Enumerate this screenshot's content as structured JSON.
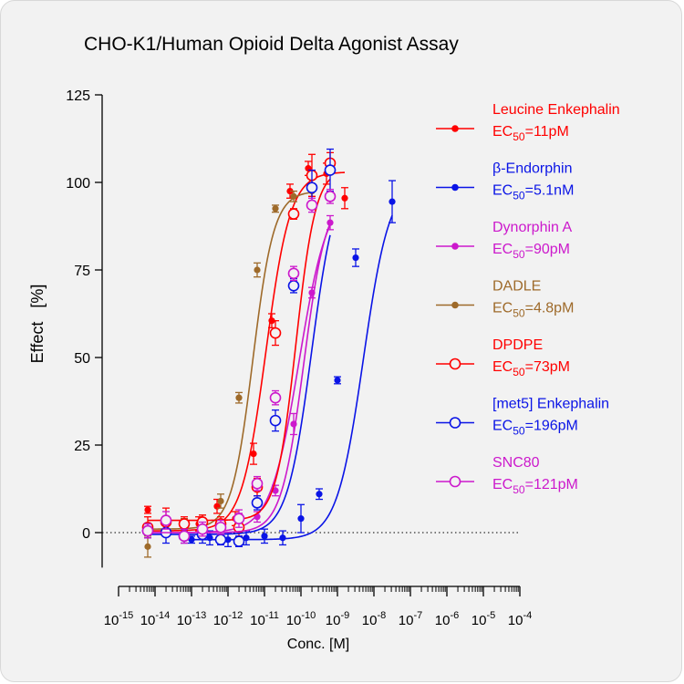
{
  "chart_data": {
    "type": "scatter",
    "title": "CHO-K1/Human Opioid Delta Agonist Assay",
    "xlabel": "Conc. [M]",
    "ylabel": "Effect   [%]",
    "x_scale": "log",
    "xlim_log10": [
      -15,
      -4
    ],
    "ylim": [
      -10,
      125
    ],
    "y_ticks": [
      "0",
      "25",
      "50",
      "75",
      "100",
      "125"
    ],
    "x_ticks": [
      {
        "base": "10",
        "exp": "-15"
      },
      {
        "base": "10",
        "exp": "-14"
      },
      {
        "base": "10",
        "exp": "-13"
      },
      {
        "base": "10",
        "exp": "-12"
      },
      {
        "base": "10",
        "exp": "-11"
      },
      {
        "base": "10",
        "exp": "-10"
      },
      {
        "base": "10",
        "exp": "-9"
      },
      {
        "base": "10",
        "exp": "-8"
      },
      {
        "base": "10",
        "exp": "-7"
      },
      {
        "base": "10",
        "exp": "-6"
      },
      {
        "base": "10",
        "exp": "-5"
      },
      {
        "base": "10",
        "exp": "-4"
      }
    ],
    "zero_line": "dotted",
    "legend_position": "right",
    "series": [
      {
        "name": "Leucine Enkephalin",
        "ec50_label": "EC",
        "ec50_sub": "50",
        "ec50_value": "=11pM",
        "color": "#ff0000",
        "marker": "filled",
        "fit": {
          "bottom": 0.5,
          "top": 103,
          "logEC50": -10.96,
          "hill": 1.3
        },
        "points": [
          {
            "x": -14.2,
            "y": 6.5,
            "err": 1.0
          },
          {
            "x": -13.7,
            "y": 1.0,
            "err": 1.0
          },
          {
            "x": -12.8,
            "y": 2.5,
            "err": 2.0
          },
          {
            "x": -12.3,
            "y": 7.5,
            "err": 2.0
          },
          {
            "x": -11.8,
            "y": 4.0,
            "err": 2.0
          },
          {
            "x": -11.3,
            "y": 22.5,
            "err": 3.0
          },
          {
            "x": -10.8,
            "y": 60.5,
            "err": 2.0
          },
          {
            "x": -10.3,
            "y": 97.5,
            "err": 2.0
          },
          {
            "x": -9.8,
            "y": 104.0,
            "err": 2.0
          },
          {
            "x": -9.3,
            "y": 102.5,
            "err": 3.0
          },
          {
            "x": -8.8,
            "y": 95.5,
            "err": 3.0
          }
        ]
      },
      {
        "name": "β-Endorphin",
        "ec50_label": "EC",
        "ec50_sub": "50",
        "ec50_value": "=5.1nM",
        "color": "#0a14e6",
        "marker": "filled",
        "fit": {
          "bottom": -2,
          "top": 101,
          "logEC50": -8.29,
          "hill": 1.2
        },
        "points": [
          {
            "x": -13.0,
            "y": -2.0,
            "err": 1.0
          },
          {
            "x": -12.5,
            "y": -1.5,
            "err": 2.0
          },
          {
            "x": -12.0,
            "y": -2.0,
            "err": 2.0
          },
          {
            "x": -11.5,
            "y": -1.5,
            "err": 2.0
          },
          {
            "x": -11.0,
            "y": -1.0,
            "err": 2.0
          },
          {
            "x": -10.5,
            "y": -1.5,
            "err": 2.0
          },
          {
            "x": -10.0,
            "y": 4.0,
            "err": 4.0
          },
          {
            "x": -9.5,
            "y": 11.0,
            "err": 1.5
          },
          {
            "x": -9.0,
            "y": 43.5,
            "err": 1.0
          },
          {
            "x": -8.5,
            "y": 78.5,
            "err": 2.5
          },
          {
            "x": -7.5,
            "y": 94.5,
            "err": 6.0
          }
        ]
      },
      {
        "name": "Dynorphin A",
        "ec50_label": "EC",
        "ec50_sub": "50",
        "ec50_value": "=90pM",
        "color": "#cc19cc",
        "marker": "filled",
        "fit": {
          "bottom": 0,
          "top": 98,
          "logEC50": -10.05,
          "hill": 1.1
        },
        "points": [
          {
            "x": -14.2,
            "y": 0.5,
            "err": 1.0
          },
          {
            "x": -13.7,
            "y": 0.0,
            "err": 1.0
          },
          {
            "x": -13.2,
            "y": 0.5,
            "err": 1.5
          },
          {
            "x": -12.7,
            "y": 1.0,
            "err": 1.5
          },
          {
            "x": -12.2,
            "y": 2.0,
            "err": 1.5
          },
          {
            "x": -11.7,
            "y": 3.5,
            "err": 2.0
          },
          {
            "x": -11.2,
            "y": 4.5,
            "err": 1.5
          },
          {
            "x": -10.7,
            "y": 12.0,
            "err": 1.5
          },
          {
            "x": -10.2,
            "y": 31.0,
            "err": 3.0
          },
          {
            "x": -9.7,
            "y": 68.5,
            "err": 1.5
          },
          {
            "x": -9.2,
            "y": 88.5,
            "err": 2.0
          }
        ]
      },
      {
        "name": "DADLE",
        "ec50_label": "EC",
        "ec50_sub": "50",
        "ec50_value": "=4.8pM",
        "color": "#9e6a2a",
        "marker": "filled",
        "fit": {
          "bottom": 1,
          "top": 97.5,
          "logEC50": -11.32,
          "hill": 1.5
        },
        "points": [
          {
            "x": -14.2,
            "y": -4.0,
            "err": 3.0
          },
          {
            "x": -13.7,
            "y": 1.0,
            "err": 2.0
          },
          {
            "x": -13.2,
            "y": 2.0,
            "err": 2.0
          },
          {
            "x": -12.7,
            "y": 3.0,
            "err": 2.0
          },
          {
            "x": -12.2,
            "y": 9.0,
            "err": 2.0
          },
          {
            "x": -11.7,
            "y": 38.5,
            "err": 1.5
          },
          {
            "x": -11.2,
            "y": 75.0,
            "err": 2.0
          },
          {
            "x": -10.7,
            "y": 92.5,
            "err": 1.0
          },
          {
            "x": -10.2,
            "y": 96.0,
            "err": 1.5
          },
          {
            "x": -9.7,
            "y": 97.5,
            "err": 1.5
          }
        ]
      },
      {
        "name": "DPDPE",
        "ec50_label": "EC",
        "ec50_sub": "50",
        "ec50_value": "=73pM",
        "color": "#ff0000",
        "marker": "open",
        "fit": {
          "bottom": 3.5,
          "top": 104,
          "logEC50": -10.14,
          "hill": 1.6
        },
        "points": [
          {
            "x": -14.2,
            "y": 1.5,
            "err": 3.0
          },
          {
            "x": -13.7,
            "y": 3.0,
            "err": 4.0
          },
          {
            "x": -13.2,
            "y": 2.5,
            "err": 2.0
          },
          {
            "x": -12.7,
            "y": 3.0,
            "err": 2.0
          },
          {
            "x": -12.2,
            "y": 2.5,
            "err": 2.0
          },
          {
            "x": -11.7,
            "y": 1.5,
            "err": 2.5
          },
          {
            "x": -11.2,
            "y": 13.0,
            "err": 2.5
          },
          {
            "x": -10.7,
            "y": 57.0,
            "err": 3.5
          },
          {
            "x": -10.2,
            "y": 91.0,
            "err": 1.5
          },
          {
            "x": -9.7,
            "y": 102.0,
            "err": 6.0
          },
          {
            "x": -9.2,
            "y": 105.5,
            "err": 3.0
          }
        ]
      },
      {
        "name": "[met5] Enkephalin",
        "ec50_label": "EC",
        "ec50_sub": "50",
        "ec50_value": "=196pM",
        "color": "#0a14e6",
        "marker": "open",
        "fit": {
          "bottom": -0.5,
          "top": 103.5,
          "logEC50": -9.71,
          "hill": 1.3
        },
        "points": [
          {
            "x": -14.2,
            "y": 0.5,
            "err": 2.0
          },
          {
            "x": -13.7,
            "y": 0.0,
            "err": 3.0
          },
          {
            "x": -13.2,
            "y": -1.0,
            "err": 2.0
          },
          {
            "x": -12.7,
            "y": -0.5,
            "err": 2.5
          },
          {
            "x": -12.2,
            "y": -2.0,
            "err": 1.5
          },
          {
            "x": -11.7,
            "y": -2.5,
            "err": 1.5
          },
          {
            "x": -11.2,
            "y": 8.5,
            "err": 2.0
          },
          {
            "x": -10.7,
            "y": 32.0,
            "err": 3.0
          },
          {
            "x": -10.2,
            "y": 70.5,
            "err": 2.0
          },
          {
            "x": -9.7,
            "y": 98.5,
            "err": 5.0
          },
          {
            "x": -9.2,
            "y": 103.5,
            "err": 6.0
          }
        ]
      },
      {
        "name": "SNC80",
        "ec50_label": "EC",
        "ec50_sub": "50",
        "ec50_value": "=121pM",
        "color": "#cc19cc",
        "marker": "open",
        "fit": {
          "bottom": 0,
          "top": 97,
          "logEC50": -9.92,
          "hill": 1.4
        },
        "points": [
          {
            "x": -14.2,
            "y": 0.5,
            "err": 2.0
          },
          {
            "x": -13.7,
            "y": 3.5,
            "err": 2.5
          },
          {
            "x": -13.2,
            "y": -1.0,
            "err": 2.0
          },
          {
            "x": -12.7,
            "y": 1.0,
            "err": 2.0
          },
          {
            "x": -12.2,
            "y": 1.5,
            "err": 2.0
          },
          {
            "x": -11.7,
            "y": 4.0,
            "err": 2.5
          },
          {
            "x": -11.2,
            "y": 14.0,
            "err": 2.0
          },
          {
            "x": -10.7,
            "y": 38.5,
            "err": 2.0
          },
          {
            "x": -10.2,
            "y": 74.0,
            "err": 2.0
          },
          {
            "x": -9.7,
            "y": 93.5,
            "err": 2.0
          },
          {
            "x": -9.2,
            "y": 96.0,
            "err": 2.0
          }
        ]
      }
    ]
  }
}
